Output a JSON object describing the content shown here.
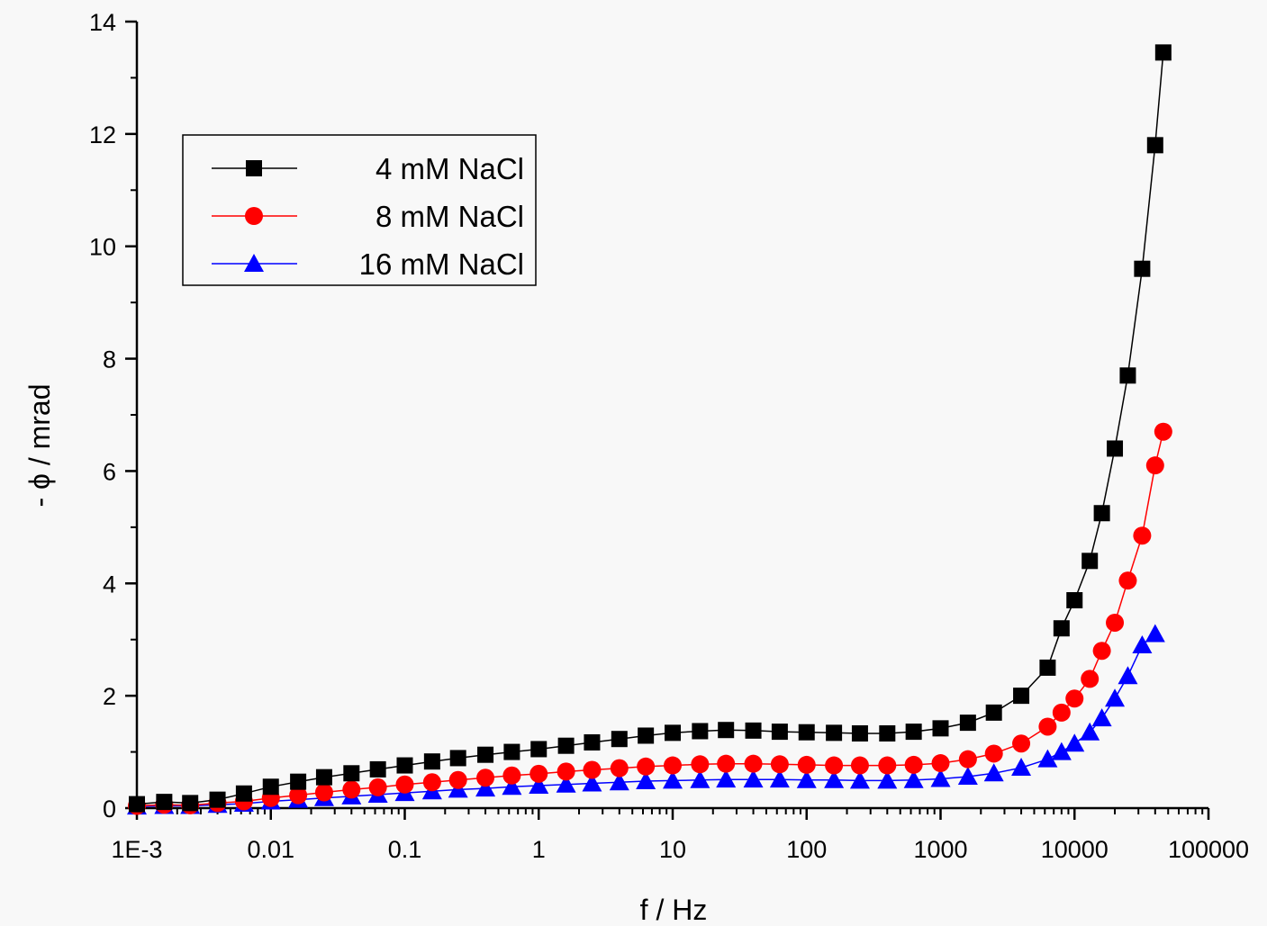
{
  "chart_data": {
    "type": "line",
    "xlabel": "f / Hz",
    "ylabel": "- ϕ / mrad",
    "x_scale": "log",
    "xlim": [
      0.001,
      100000
    ],
    "ylim": [
      0,
      14
    ],
    "x_ticks": [
      "1E-3",
      "0.01",
      "0.1",
      "1",
      "10",
      "100",
      "1000",
      "10000",
      "100000"
    ],
    "y_ticks": [
      "0",
      "2",
      "4",
      "6",
      "8",
      "10",
      "12",
      "14"
    ],
    "legend_position": "upper-left",
    "grid": false,
    "series": [
      {
        "name": "4 mM NaCl",
        "color": "#000000",
        "marker": "square",
        "points": [
          [
            0.001,
            0.07
          ],
          [
            0.0016,
            0.11
          ],
          [
            0.0025,
            0.09
          ],
          [
            0.004,
            0.15
          ],
          [
            0.0063,
            0.26
          ],
          [
            0.01,
            0.38
          ],
          [
            0.016,
            0.47
          ],
          [
            0.025,
            0.55
          ],
          [
            0.04,
            0.62
          ],
          [
            0.063,
            0.69
          ],
          [
            0.1,
            0.76
          ],
          [
            0.16,
            0.83
          ],
          [
            0.25,
            0.89
          ],
          [
            0.4,
            0.95
          ],
          [
            0.63,
            1.0
          ],
          [
            1,
            1.05
          ],
          [
            1.6,
            1.11
          ],
          [
            2.5,
            1.17
          ],
          [
            4,
            1.23
          ],
          [
            6.3,
            1.29
          ],
          [
            10,
            1.34
          ],
          [
            16,
            1.37
          ],
          [
            25,
            1.39
          ],
          [
            40,
            1.38
          ],
          [
            63,
            1.36
          ],
          [
            100,
            1.35
          ],
          [
            160,
            1.34
          ],
          [
            250,
            1.33
          ],
          [
            400,
            1.33
          ],
          [
            630,
            1.36
          ],
          [
            1000,
            1.42
          ],
          [
            1600,
            1.52
          ],
          [
            2500,
            1.7
          ],
          [
            4000,
            2.0
          ],
          [
            6300,
            2.5
          ],
          [
            8000,
            3.2
          ],
          [
            10000,
            3.7
          ],
          [
            13000,
            4.4
          ],
          [
            16000,
            5.25
          ],
          [
            20000,
            6.4
          ],
          [
            25000,
            7.7
          ],
          [
            32000,
            9.6
          ],
          [
            40000,
            11.8
          ],
          [
            46000,
            13.45
          ]
        ]
      },
      {
        "name": "8 mM NaCl",
        "color": "#ff0000",
        "marker": "circle",
        "points": [
          [
            0.001,
            0.04
          ],
          [
            0.0016,
            0.06
          ],
          [
            0.0025,
            0.05
          ],
          [
            0.004,
            0.09
          ],
          [
            0.0063,
            0.12
          ],
          [
            0.01,
            0.18
          ],
          [
            0.016,
            0.23
          ],
          [
            0.025,
            0.28
          ],
          [
            0.04,
            0.33
          ],
          [
            0.063,
            0.37
          ],
          [
            0.1,
            0.42
          ],
          [
            0.16,
            0.46
          ],
          [
            0.25,
            0.5
          ],
          [
            0.4,
            0.54
          ],
          [
            0.63,
            0.58
          ],
          [
            1,
            0.61
          ],
          [
            1.6,
            0.65
          ],
          [
            2.5,
            0.68
          ],
          [
            4,
            0.71
          ],
          [
            6.3,
            0.74
          ],
          [
            10,
            0.76
          ],
          [
            16,
            0.78
          ],
          [
            25,
            0.79
          ],
          [
            40,
            0.79
          ],
          [
            63,
            0.78
          ],
          [
            100,
            0.77
          ],
          [
            160,
            0.76
          ],
          [
            250,
            0.76
          ],
          [
            400,
            0.76
          ],
          [
            630,
            0.77
          ],
          [
            1000,
            0.8
          ],
          [
            1600,
            0.87
          ],
          [
            2500,
            0.97
          ],
          [
            4000,
            1.15
          ],
          [
            6300,
            1.45
          ],
          [
            8000,
            1.7
          ],
          [
            10000,
            1.95
          ],
          [
            13000,
            2.3
          ],
          [
            16000,
            2.8
          ],
          [
            20000,
            3.3
          ],
          [
            25000,
            4.05
          ],
          [
            32000,
            4.85
          ],
          [
            40000,
            6.1
          ],
          [
            46000,
            6.7
          ]
        ]
      },
      {
        "name": "16 mM NaCl",
        "color": "#0000ff",
        "marker": "triangle",
        "points": [
          [
            0.001,
            0.03
          ],
          [
            0.0016,
            0.04
          ],
          [
            0.0025,
            0.04
          ],
          [
            0.004,
            0.06
          ],
          [
            0.0063,
            0.08
          ],
          [
            0.01,
            0.12
          ],
          [
            0.016,
            0.15
          ],
          [
            0.025,
            0.18
          ],
          [
            0.04,
            0.21
          ],
          [
            0.063,
            0.24
          ],
          [
            0.1,
            0.27
          ],
          [
            0.16,
            0.3
          ],
          [
            0.25,
            0.33
          ],
          [
            0.4,
            0.35
          ],
          [
            0.63,
            0.38
          ],
          [
            1,
            0.4
          ],
          [
            1.6,
            0.42
          ],
          [
            2.5,
            0.44
          ],
          [
            4,
            0.46
          ],
          [
            6.3,
            0.48
          ],
          [
            10,
            0.49
          ],
          [
            16,
            0.5
          ],
          [
            25,
            0.51
          ],
          [
            40,
            0.51
          ],
          [
            63,
            0.51
          ],
          [
            100,
            0.5
          ],
          [
            160,
            0.5
          ],
          [
            250,
            0.49
          ],
          [
            400,
            0.49
          ],
          [
            630,
            0.5
          ],
          [
            1000,
            0.52
          ],
          [
            1600,
            0.56
          ],
          [
            2500,
            0.62
          ],
          [
            4000,
            0.72
          ],
          [
            6300,
            0.87
          ],
          [
            8000,
            1.0
          ],
          [
            10000,
            1.15
          ],
          [
            13000,
            1.35
          ],
          [
            16000,
            1.6
          ],
          [
            20000,
            1.95
          ],
          [
            25000,
            2.35
          ],
          [
            32000,
            2.9
          ],
          [
            40000,
            3.1
          ]
        ]
      }
    ]
  }
}
